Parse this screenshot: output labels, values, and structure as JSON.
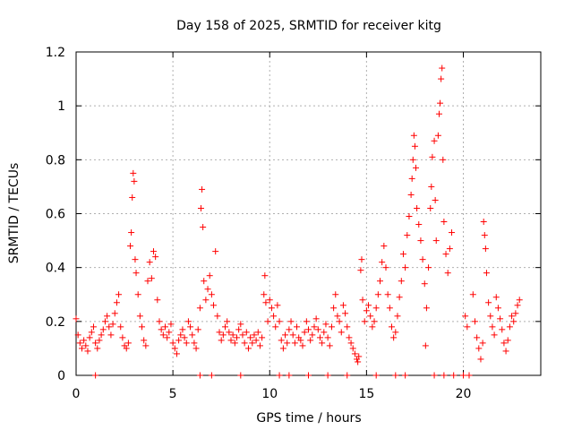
{
  "chart_data": {
    "type": "scatter",
    "title": "Day 158 of 2025, SRMTID for receiver kitg",
    "xlabel": "GPS time / hours",
    "ylabel": "SRMTID / TECUs",
    "xlim": [
      0,
      24
    ],
    "ylim": [
      0,
      1.2
    ],
    "x_ticks": [
      0,
      5,
      10,
      15,
      20
    ],
    "x_tick_labels": [
      "0",
      "5",
      "10",
      "15",
      "20"
    ],
    "y_ticks": [
      0,
      0.2,
      0.4,
      0.6,
      0.8,
      1.0,
      1.2
    ],
    "y_tick_labels": [
      "0",
      "0.2",
      "0.4",
      "0.6",
      "0.8",
      "1",
      "1.2"
    ],
    "grid": true,
    "marker": "+",
    "color": "#ff0000",
    "series": [
      {
        "name": "SRMTID",
        "points": [
          [
            0.0,
            0.21
          ],
          [
            0.1,
            0.15
          ],
          [
            0.2,
            0.12
          ],
          [
            0.3,
            0.1
          ],
          [
            0.4,
            0.13
          ],
          [
            0.5,
            0.11
          ],
          [
            0.6,
            0.09
          ],
          [
            0.7,
            0.14
          ],
          [
            0.8,
            0.16
          ],
          [
            0.9,
            0.18
          ],
          [
            1.0,
            0.12
          ],
          [
            1.1,
            0.1
          ],
          [
            1.2,
            0.13
          ],
          [
            1.3,
            0.15
          ],
          [
            1.4,
            0.17
          ],
          [
            1.5,
            0.2
          ],
          [
            1.6,
            0.22
          ],
          [
            1.7,
            0.18
          ],
          [
            1.8,
            0.15
          ],
          [
            1.9,
            0.19
          ],
          [
            2.0,
            0.23
          ],
          [
            2.1,
            0.27
          ],
          [
            2.2,
            0.3
          ],
          [
            2.3,
            0.18
          ],
          [
            2.4,
            0.14
          ],
          [
            2.5,
            0.11
          ],
          [
            2.6,
            0.1
          ],
          [
            2.7,
            0.12
          ],
          [
            2.8,
            0.48
          ],
          [
            2.85,
            0.53
          ],
          [
            2.9,
            0.66
          ],
          [
            2.95,
            0.75
          ],
          [
            3.0,
            0.72
          ],
          [
            3.05,
            0.43
          ],
          [
            3.1,
            0.38
          ],
          [
            3.2,
            0.3
          ],
          [
            3.3,
            0.22
          ],
          [
            3.4,
            0.18
          ],
          [
            3.5,
            0.13
          ],
          [
            3.6,
            0.11
          ],
          [
            3.7,
            0.35
          ],
          [
            3.8,
            0.42
          ],
          [
            3.9,
            0.36
          ],
          [
            4.0,
            0.46
          ],
          [
            4.1,
            0.44
          ],
          [
            4.2,
            0.28
          ],
          [
            4.3,
            0.2
          ],
          [
            4.4,
            0.17
          ],
          [
            4.5,
            0.15
          ],
          [
            4.6,
            0.18
          ],
          [
            4.7,
            0.14
          ],
          [
            4.8,
            0.16
          ],
          [
            4.9,
            0.19
          ],
          [
            5.0,
            0.12
          ],
          [
            5.1,
            0.1
          ],
          [
            5.2,
            0.08
          ],
          [
            5.3,
            0.13
          ],
          [
            5.4,
            0.15
          ],
          [
            5.5,
            0.17
          ],
          [
            5.6,
            0.14
          ],
          [
            5.7,
            0.12
          ],
          [
            5.8,
            0.2
          ],
          [
            5.9,
            0.18
          ],
          [
            6.0,
            0.15
          ],
          [
            6.1,
            0.12
          ],
          [
            6.2,
            0.1
          ],
          [
            6.3,
            0.17
          ],
          [
            6.4,
            0.25
          ],
          [
            6.45,
            0.62
          ],
          [
            6.5,
            0.69
          ],
          [
            6.55,
            0.55
          ],
          [
            6.6,
            0.35
          ],
          [
            6.7,
            0.28
          ],
          [
            6.8,
            0.32
          ],
          [
            6.9,
            0.37
          ],
          [
            7.0,
            0.3
          ],
          [
            7.1,
            0.26
          ],
          [
            7.2,
            0.46
          ],
          [
            7.3,
            0.22
          ],
          [
            7.4,
            0.16
          ],
          [
            7.5,
            0.13
          ],
          [
            7.6,
            0.15
          ],
          [
            7.7,
            0.18
          ],
          [
            7.8,
            0.2
          ],
          [
            7.9,
            0.16
          ],
          [
            8.0,
            0.13
          ],
          [
            8.1,
            0.15
          ],
          [
            8.2,
            0.12
          ],
          [
            8.3,
            0.14
          ],
          [
            8.4,
            0.17
          ],
          [
            8.5,
            0.19
          ],
          [
            8.6,
            0.15
          ],
          [
            8.7,
            0.12
          ],
          [
            8.8,
            0.16
          ],
          [
            8.9,
            0.1
          ],
          [
            9.0,
            0.14
          ],
          [
            9.1,
            0.12
          ],
          [
            9.2,
            0.15
          ],
          [
            9.3,
            0.13
          ],
          [
            9.4,
            0.16
          ],
          [
            9.5,
            0.11
          ],
          [
            9.6,
            0.14
          ],
          [
            9.7,
            0.3
          ],
          [
            9.75,
            0.37
          ],
          [
            9.8,
            0.27
          ],
          [
            9.9,
            0.2
          ],
          [
            10.0,
            0.28
          ],
          [
            10.1,
            0.25
          ],
          [
            10.2,
            0.22
          ],
          [
            10.3,
            0.18
          ],
          [
            10.4,
            0.26
          ],
          [
            10.5,
            0.2
          ],
          [
            10.6,
            0.13
          ],
          [
            10.7,
            0.1
          ],
          [
            10.8,
            0.15
          ],
          [
            10.9,
            0.12
          ],
          [
            11.0,
            0.17
          ],
          [
            11.1,
            0.2
          ],
          [
            11.2,
            0.15
          ],
          [
            11.3,
            0.12
          ],
          [
            11.4,
            0.18
          ],
          [
            11.5,
            0.14
          ],
          [
            11.6,
            0.13
          ],
          [
            11.7,
            0.11
          ],
          [
            11.8,
            0.16
          ],
          [
            11.9,
            0.2
          ],
          [
            12.0,
            0.17
          ],
          [
            12.1,
            0.13
          ],
          [
            12.2,
            0.15
          ],
          [
            12.3,
            0.18
          ],
          [
            12.4,
            0.21
          ],
          [
            12.5,
            0.17
          ],
          [
            12.6,
            0.14
          ],
          [
            12.7,
            0.12
          ],
          [
            12.8,
            0.16
          ],
          [
            12.9,
            0.19
          ],
          [
            13.0,
            0.14
          ],
          [
            13.1,
            0.11
          ],
          [
            13.2,
            0.18
          ],
          [
            13.3,
            0.25
          ],
          [
            13.4,
            0.3
          ],
          [
            13.5,
            0.22
          ],
          [
            13.6,
            0.2
          ],
          [
            13.7,
            0.16
          ],
          [
            13.8,
            0.26
          ],
          [
            13.9,
            0.23
          ],
          [
            14.0,
            0.18
          ],
          [
            14.1,
            0.14
          ],
          [
            14.2,
            0.12
          ],
          [
            14.3,
            0.1
          ],
          [
            14.4,
            0.08
          ],
          [
            14.5,
            0.06
          ],
          [
            14.55,
            0.05
          ],
          [
            14.6,
            0.07
          ],
          [
            14.7,
            0.39
          ],
          [
            14.75,
            0.43
          ],
          [
            14.8,
            0.28
          ],
          [
            14.9,
            0.2
          ],
          [
            15.0,
            0.24
          ],
          [
            15.1,
            0.26
          ],
          [
            15.2,
            0.22
          ],
          [
            15.3,
            0.18
          ],
          [
            15.4,
            0.2
          ],
          [
            15.5,
            0.25
          ],
          [
            15.6,
            0.3
          ],
          [
            15.7,
            0.35
          ],
          [
            15.8,
            0.42
          ],
          [
            15.9,
            0.48
          ],
          [
            16.0,
            0.4
          ],
          [
            16.1,
            0.3
          ],
          [
            16.2,
            0.25
          ],
          [
            16.3,
            0.18
          ],
          [
            16.4,
            0.14
          ],
          [
            16.5,
            0.16
          ],
          [
            16.6,
            0.22
          ],
          [
            16.7,
            0.29
          ],
          [
            16.8,
            0.35
          ],
          [
            16.9,
            0.45
          ],
          [
            17.0,
            0.4
          ],
          [
            17.1,
            0.52
          ],
          [
            17.2,
            0.59
          ],
          [
            17.3,
            0.67
          ],
          [
            17.35,
            0.73
          ],
          [
            17.4,
            0.8
          ],
          [
            17.45,
            0.89
          ],
          [
            17.5,
            0.85
          ],
          [
            17.55,
            0.77
          ],
          [
            17.6,
            0.62
          ],
          [
            17.7,
            0.56
          ],
          [
            17.8,
            0.5
          ],
          [
            17.9,
            0.43
          ],
          [
            18.0,
            0.34
          ],
          [
            18.05,
            0.11
          ],
          [
            18.1,
            0.25
          ],
          [
            18.2,
            0.4
          ],
          [
            18.3,
            0.62
          ],
          [
            18.35,
            0.7
          ],
          [
            18.4,
            0.81
          ],
          [
            18.5,
            0.87
          ],
          [
            18.55,
            0.65
          ],
          [
            18.6,
            0.5
          ],
          [
            18.7,
            0.89
          ],
          [
            18.75,
            0.97
          ],
          [
            18.8,
            1.01
          ],
          [
            18.85,
            1.1
          ],
          [
            18.9,
            1.14
          ],
          [
            18.95,
            0.8
          ],
          [
            19.0,
            0.57
          ],
          [
            19.1,
            0.45
          ],
          [
            19.2,
            0.38
          ],
          [
            19.3,
            0.47
          ],
          [
            19.4,
            0.53
          ],
          [
            20.0,
            0.0
          ],
          [
            20.1,
            0.22
          ],
          [
            20.2,
            0.18
          ],
          [
            20.3,
            0.0
          ],
          [
            20.5,
            0.3
          ],
          [
            20.6,
            0.2
          ],
          [
            20.7,
            0.14
          ],
          [
            20.8,
            0.1
          ],
          [
            20.9,
            0.06
          ],
          [
            21.0,
            0.12
          ],
          [
            21.05,
            0.57
          ],
          [
            21.1,
            0.52
          ],
          [
            21.15,
            0.47
          ],
          [
            21.2,
            0.38
          ],
          [
            21.3,
            0.27
          ],
          [
            21.4,
            0.22
          ],
          [
            21.5,
            0.18
          ],
          [
            21.6,
            0.15
          ],
          [
            21.7,
            0.29
          ],
          [
            21.8,
            0.25
          ],
          [
            21.9,
            0.21
          ],
          [
            22.0,
            0.17
          ],
          [
            22.1,
            0.12
          ],
          [
            22.2,
            0.09
          ],
          [
            22.3,
            0.13
          ],
          [
            22.4,
            0.18
          ],
          [
            22.5,
            0.22
          ],
          [
            22.6,
            0.2
          ],
          [
            22.7,
            0.23
          ],
          [
            22.8,
            0.26
          ],
          [
            22.9,
            0.28
          ],
          [
            1.0,
            0.0
          ],
          [
            6.4,
            0.0
          ],
          [
            7.0,
            0.0
          ],
          [
            8.5,
            0.0
          ],
          [
            10.5,
            0.0
          ],
          [
            11.0,
            0.0
          ],
          [
            12.0,
            0.0
          ],
          [
            13.0,
            0.0
          ],
          [
            14.0,
            0.0
          ],
          [
            15.5,
            0.0
          ],
          [
            16.5,
            0.0
          ],
          [
            17.0,
            0.0
          ],
          [
            18.5,
            0.0
          ],
          [
            19.0,
            0.0
          ],
          [
            19.5,
            0.0
          ]
        ]
      }
    ]
  }
}
